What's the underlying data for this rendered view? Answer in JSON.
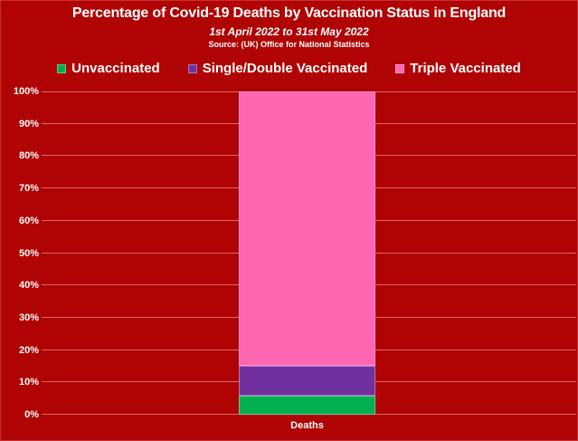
{
  "colors": {
    "background": "#B00303",
    "text": "#FFFFFF",
    "gridline": "rgba(255,185,185,0.55)",
    "unvaccinated": "#00B050",
    "single_double": "#7030A0",
    "triple": "#FF66B2"
  },
  "chart_data": {
    "type": "bar",
    "stacked": true,
    "title": "Percentage of Covid-19 Deaths by Vaccination Status in England",
    "subtitle": "1st April 2022 to 31st May 2022",
    "source": "Source: (UK) Office for National Statistics",
    "categories": [
      "Deaths"
    ],
    "series": [
      {
        "name": "Unvaccinated",
        "color": "#00B050",
        "values": [
          6
        ]
      },
      {
        "name": "Single/Double Vaccinated",
        "color": "#7030A0",
        "values": [
          9
        ]
      },
      {
        "name": "Triple Vaccinated",
        "color": "#FF66B2",
        "values": [
          85
        ]
      }
    ],
    "xlabel": "",
    "ylabel": "",
    "ylim": [
      0,
      100
    ],
    "grid": true,
    "legend_position": "top",
    "yticks": [
      {
        "value": 0,
        "label": "0%"
      },
      {
        "value": 10,
        "label": "10%"
      },
      {
        "value": 20,
        "label": "20%"
      },
      {
        "value": 30,
        "label": "30%"
      },
      {
        "value": 40,
        "label": "40%"
      },
      {
        "value": 50,
        "label": "50%"
      },
      {
        "value": 60,
        "label": "60%"
      },
      {
        "value": 70,
        "label": "70%"
      },
      {
        "value": 80,
        "label": "80%"
      },
      {
        "value": 90,
        "label": "90%"
      },
      {
        "value": 100,
        "label": "100%"
      }
    ]
  }
}
